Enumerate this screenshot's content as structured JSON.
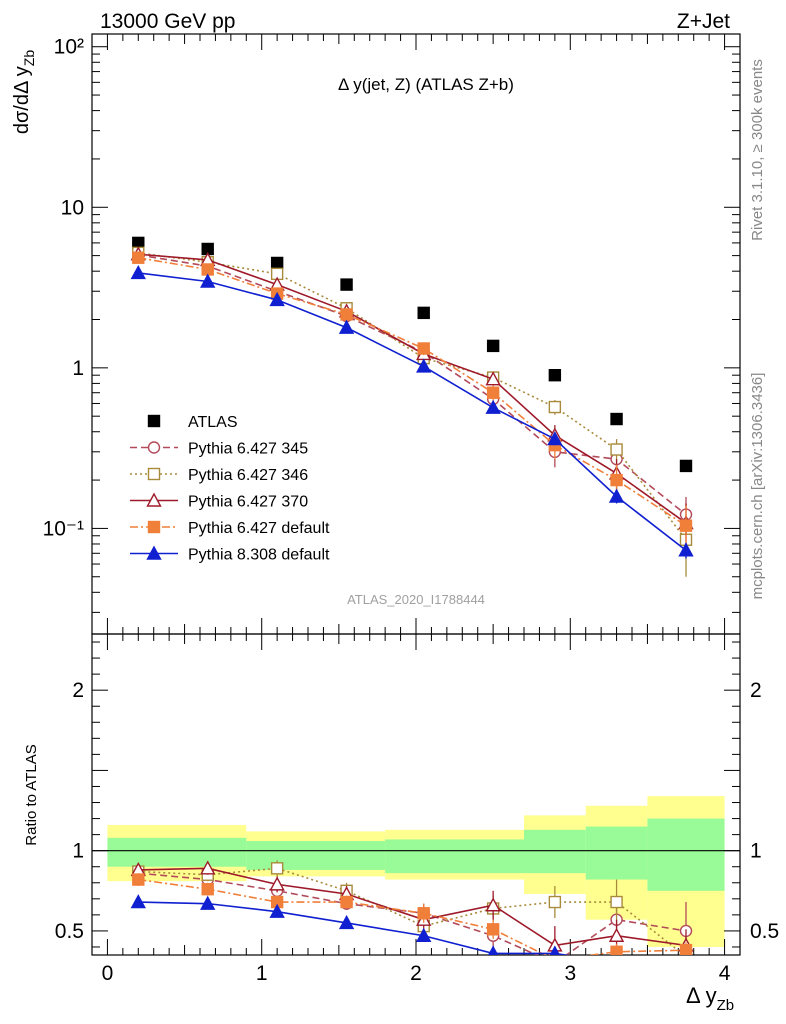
{
  "header": {
    "left": "13000 GeV pp",
    "right": "Z+Jet",
    "side_top": "Rivet 3.1.10, ≥ 300k events",
    "side_bottom": "mcplots.cern.ch [arXiv:1306.3436]"
  },
  "chart_data": [
    {
      "type": "scatter",
      "title": "Δ y(jet, Z) (ATLAS Z+b)",
      "ylabel": "dσ/dΔ y_Zb",
      "watermark": "ATLAS_2020_I1788444",
      "yscale": "log",
      "xlim": [
        -0.1,
        4.1
      ],
      "ylim": [
        0.022,
        120
      ],
      "yticks": [
        {
          "v": 0.1,
          "label": "10⁻¹"
        },
        {
          "v": 1,
          "label": "1"
        },
        {
          "v": 10,
          "label": "10"
        },
        {
          "v": 100,
          "label": "10²"
        }
      ],
      "legend_position": "lower-left",
      "series": [
        {
          "name": "ATLAS",
          "color": "#000000",
          "marker": "square",
          "line": "none",
          "x": [
            0.2,
            0.65,
            1.1,
            1.55,
            2.05,
            2.5,
            2.9,
            3.3,
            3.75
          ],
          "y": [
            6.0,
            5.5,
            4.5,
            3.3,
            2.2,
            1.37,
            0.9,
            0.48,
            0.245
          ]
        },
        {
          "name": "Pythia 6.427 345",
          "color": "#b24a5a",
          "marker": "circle-open",
          "line": "dashed",
          "x": [
            0.2,
            0.65,
            1.1,
            1.55,
            2.05,
            2.5,
            2.9,
            3.3,
            3.75
          ],
          "y": [
            5.05,
            4.3,
            3.0,
            2.1,
            1.25,
            0.64,
            0.3,
            0.27,
            0.122
          ],
          "err": [
            0.25,
            0.3,
            0.25,
            0.15,
            0.12,
            0.08,
            0.06,
            0.05,
            0.035
          ]
        },
        {
          "name": "Pythia 6.427 346",
          "color": "#a88b3a",
          "marker": "square-open",
          "line": "dotted",
          "x": [
            0.2,
            0.65,
            1.1,
            1.55,
            2.05,
            2.5,
            2.9,
            3.3,
            3.75
          ],
          "y": [
            5.2,
            4.55,
            3.85,
            2.35,
            1.15,
            0.87,
            0.57,
            0.31,
            0.085
          ],
          "err": [
            0.25,
            0.3,
            0.25,
            0.15,
            0.12,
            0.08,
            0.06,
            0.05,
            0.035
          ]
        },
        {
          "name": "Pythia 6.427 370",
          "color": "#9e1a2a",
          "marker": "triangle-open",
          "line": "solid",
          "x": [
            0.2,
            0.65,
            1.1,
            1.55,
            2.05,
            2.5,
            2.9,
            3.3,
            3.75
          ],
          "y": [
            5.1,
            4.7,
            3.3,
            2.25,
            1.22,
            0.85,
            0.38,
            0.22,
            0.108
          ],
          "err": [
            0.25,
            0.3,
            0.25,
            0.15,
            0.12,
            0.08,
            0.06,
            0.05,
            0.035
          ]
        },
        {
          "name": "Pythia 6.427 default",
          "color": "#f07f3a",
          "marker": "square",
          "line": "dashdot",
          "x": [
            0.2,
            0.65,
            1.1,
            1.55,
            2.05,
            2.5,
            2.9,
            3.3,
            3.75
          ],
          "y": [
            4.85,
            4.1,
            2.9,
            2.15,
            1.32,
            0.7,
            0.33,
            0.2,
            0.104
          ],
          "err": [
            0.25,
            0.3,
            0.25,
            0.15,
            0.12,
            0.08,
            0.06,
            0.05,
            0.035
          ]
        },
        {
          "name": "Pythia 8.308 default",
          "color": "#1020d0",
          "marker": "triangle",
          "line": "solid",
          "x": [
            0.2,
            0.65,
            1.1,
            1.55,
            2.05,
            2.5,
            2.9,
            3.3,
            3.75
          ],
          "y": [
            3.9,
            3.45,
            2.65,
            1.78,
            1.02,
            0.565,
            0.36,
            0.158,
            0.073
          ],
          "err": [
            0.12,
            0.12,
            0.1,
            0.07,
            0.05,
            0.035,
            0.03,
            0.015,
            0.008
          ]
        }
      ]
    },
    {
      "type": "scatter",
      "ylabel": "Ratio to ATLAS",
      "xlabel": "Δ y_Zb",
      "xlim": [
        -0.1,
        4.1
      ],
      "ylim": [
        0.35,
        2.35
      ],
      "xticks": [
        0,
        1,
        2,
        3,
        4
      ],
      "yticks": [
        0.5,
        1,
        2
      ],
      "bins": [
        [
          0,
          0.9
        ],
        [
          0.9,
          1.8
        ],
        [
          1.8,
          2.7
        ],
        [
          2.7,
          3.1
        ],
        [
          3.1,
          3.5
        ],
        [
          3.5,
          4.0
        ]
      ],
      "band_stat": [
        [
          0.9,
          1.08
        ],
        [
          0.88,
          1.06
        ],
        [
          0.86,
          1.07
        ],
        [
          0.86,
          1.13
        ],
        [
          0.82,
          1.15
        ],
        [
          0.75,
          1.2
        ]
      ],
      "band_total": [
        [
          0.81,
          1.16
        ],
        [
          0.84,
          1.12
        ],
        [
          0.82,
          1.13
        ],
        [
          0.73,
          1.22
        ],
        [
          0.57,
          1.28
        ],
        [
          0.4,
          1.34
        ]
      ],
      "series": [
        {
          "name": "Pythia 6.427 345",
          "color": "#b24a5a",
          "marker": "circle-open",
          "line": "dashed",
          "x": [
            0.2,
            0.65,
            1.1,
            1.55,
            2.05,
            2.5,
            2.9,
            3.3,
            3.75
          ],
          "y": [
            0.86,
            0.82,
            0.75,
            0.67,
            0.61,
            0.47,
            0.3,
            0.57,
            0.5
          ],
          "err": [
            0.04,
            0.04,
            0.05,
            0.04,
            0.06,
            0.07,
            0.08,
            0.12,
            0.18
          ]
        },
        {
          "name": "Pythia 6.427 346",
          "color": "#a88b3a",
          "marker": "square-open",
          "line": "dotted",
          "x": [
            0.2,
            0.65,
            1.1,
            1.55,
            2.05,
            2.5,
            2.9,
            3.3,
            3.75
          ],
          "y": [
            0.87,
            0.85,
            0.89,
            0.75,
            0.53,
            0.64,
            0.68,
            0.68,
            0.34
          ],
          "err": [
            0.04,
            0.04,
            0.05,
            0.05,
            0.06,
            0.08,
            0.1,
            0.14,
            0.12
          ]
        },
        {
          "name": "Pythia 6.427 370",
          "color": "#9e1a2a",
          "marker": "triangle-open",
          "line": "solid",
          "x": [
            0.2,
            0.65,
            1.1,
            1.55,
            2.05,
            2.5,
            2.9,
            3.3,
            3.75
          ],
          "y": [
            0.88,
            0.89,
            0.79,
            0.73,
            0.57,
            0.66,
            0.41,
            0.47,
            0.41
          ],
          "err": [
            0.04,
            0.04,
            0.05,
            0.05,
            0.06,
            0.09,
            0.12,
            0.1,
            0.1
          ]
        },
        {
          "name": "Pythia 6.427 default",
          "color": "#f07f3a",
          "marker": "square",
          "line": "dashdot",
          "x": [
            0.2,
            0.65,
            1.1,
            1.55,
            2.05,
            2.5,
            2.9,
            3.3,
            3.75
          ],
          "y": [
            0.82,
            0.76,
            0.68,
            0.68,
            0.61,
            0.51,
            0.32,
            0.37,
            0.38
          ],
          "err": [
            0.04,
            0.04,
            0.04,
            0.04,
            0.06,
            0.06,
            0.07,
            0.05,
            0.05
          ]
        },
        {
          "name": "Pythia 8.308 default",
          "color": "#1020d0",
          "marker": "triangle",
          "line": "solid",
          "x": [
            0.2,
            0.65,
            1.1,
            1.55,
            2.05,
            2.5,
            2.9,
            3.3,
            3.75
          ],
          "y": [
            0.68,
            0.67,
            0.62,
            0.55,
            0.47,
            0.36,
            0.36,
            0.3,
            0.3
          ],
          "err": [
            0.02,
            0.02,
            0.02,
            0.02,
            0.02,
            0.02,
            0.02,
            0.02,
            0.02
          ]
        }
      ]
    }
  ]
}
